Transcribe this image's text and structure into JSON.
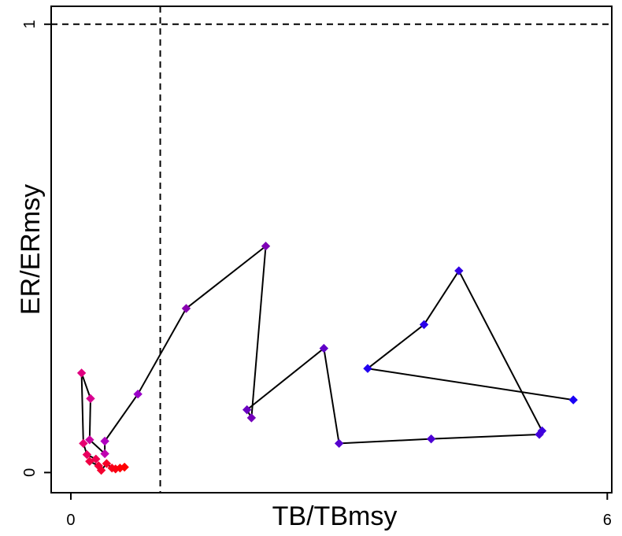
{
  "chart_data": {
    "type": "scatter",
    "connected": true,
    "xlabel": "TB/TBmsy",
    "ylabel": "ER/ERmsy",
    "xlim": [
      -0.22,
      6.05
    ],
    "ylim": [
      -0.045,
      1.04
    ],
    "x_ticks": [
      0,
      6
    ],
    "x_tick_labels": [
      "0",
      "6"
    ],
    "y_ticks": [
      0,
      1
    ],
    "y_tick_labels": [
      "0",
      "1"
    ],
    "reference_lines": {
      "x": 1.0,
      "y": 1.0,
      "style": "dashed"
    },
    "color_ramp": {
      "start": "#0000ff",
      "middle": "#a020f0",
      "end": "#ff0000"
    },
    "line_color": "#000000",
    "grid": false,
    "points": [
      {
        "x": 5.62,
        "y": 0.162,
        "color": "#1a00f5"
      },
      {
        "x": 3.32,
        "y": 0.232,
        "color": "#2200f0"
      },
      {
        "x": 3.95,
        "y": 0.33,
        "color": "#2a00ea"
      },
      {
        "x": 4.34,
        "y": 0.45,
        "color": "#3300e5"
      },
      {
        "x": 5.27,
        "y": 0.093,
        "color": "#3c00e0"
      },
      {
        "x": 5.24,
        "y": 0.085,
        "color": "#4400da"
      },
      {
        "x": 4.03,
        "y": 0.075,
        "color": "#4d00d4"
      },
      {
        "x": 3.0,
        "y": 0.065,
        "color": "#5600ce"
      },
      {
        "x": 2.83,
        "y": 0.277,
        "color": "#6000c8"
      },
      {
        "x": 1.97,
        "y": 0.14,
        "color": "#6a00c2"
      },
      {
        "x": 2.02,
        "y": 0.122,
        "color": "#7400bc"
      },
      {
        "x": 2.18,
        "y": 0.505,
        "color": "#7e00b6"
      },
      {
        "x": 1.29,
        "y": 0.366,
        "color": "#8800b0"
      },
      {
        "x": 0.75,
        "y": 0.175,
        "color": "#9a00c8"
      },
      {
        "x": 0.38,
        "y": 0.07,
        "color": "#b000c0"
      },
      {
        "x": 0.38,
        "y": 0.042,
        "color": "#c000b0"
      },
      {
        "x": 0.21,
        "y": 0.073,
        "color": "#cc00a0"
      },
      {
        "x": 0.22,
        "y": 0.165,
        "color": "#d80090"
      },
      {
        "x": 0.12,
        "y": 0.222,
        "color": "#e00080"
      },
      {
        "x": 0.14,
        "y": 0.065,
        "color": "#e60070"
      },
      {
        "x": 0.18,
        "y": 0.04,
        "color": "#ea0060"
      },
      {
        "x": 0.28,
        "y": 0.03,
        "color": "#ee0050"
      },
      {
        "x": 0.21,
        "y": 0.025,
        "color": "#f00044"
      },
      {
        "x": 0.31,
        "y": 0.015,
        "color": "#f2003a"
      },
      {
        "x": 0.34,
        "y": 0.005,
        "color": "#f40030"
      },
      {
        "x": 0.4,
        "y": 0.02,
        "color": "#f60026"
      },
      {
        "x": 0.46,
        "y": 0.01,
        "color": "#f8001c"
      },
      {
        "x": 0.5,
        "y": 0.008,
        "color": "#fa0012"
      },
      {
        "x": 0.55,
        "y": 0.01,
        "color": "#fd0008"
      },
      {
        "x": 0.6,
        "y": 0.012,
        "color": "#ff0000"
      }
    ]
  }
}
